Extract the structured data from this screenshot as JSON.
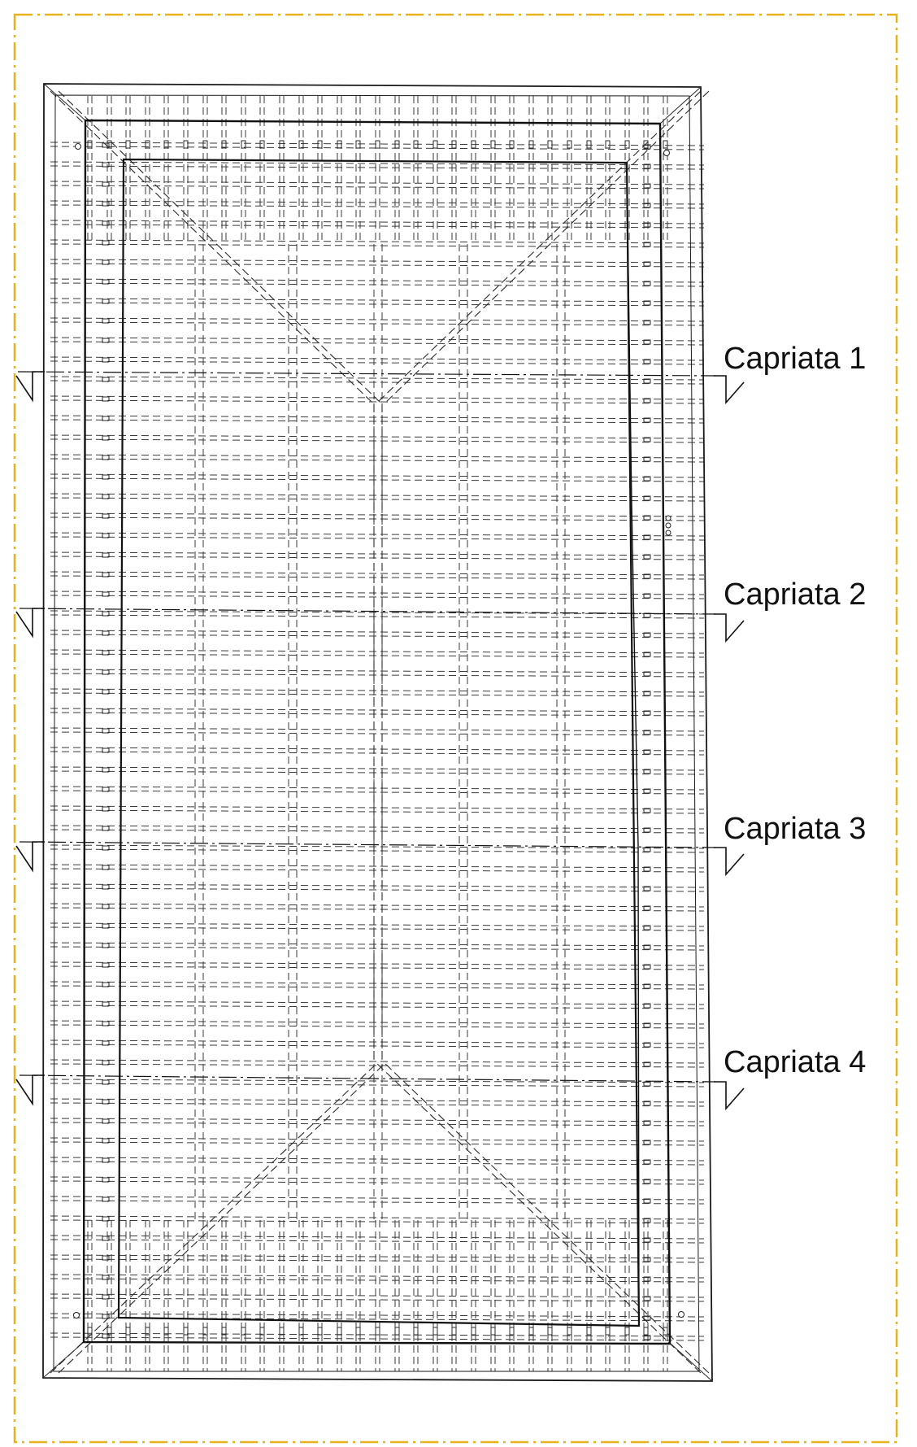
{
  "sections": [
    {
      "id": "capriata-1",
      "label": "Capriata 1"
    },
    {
      "id": "capriata-2",
      "label": "Capriata 2"
    },
    {
      "id": "capriata-3",
      "label": "Capriata 3"
    },
    {
      "id": "capriata-4",
      "label": "Capriata 4"
    }
  ],
  "colors": {
    "sheet_border": "#e8b21c",
    "line": "#1a1a1a",
    "dash": "#3a3a3a",
    "background": "#ffffff"
  }
}
